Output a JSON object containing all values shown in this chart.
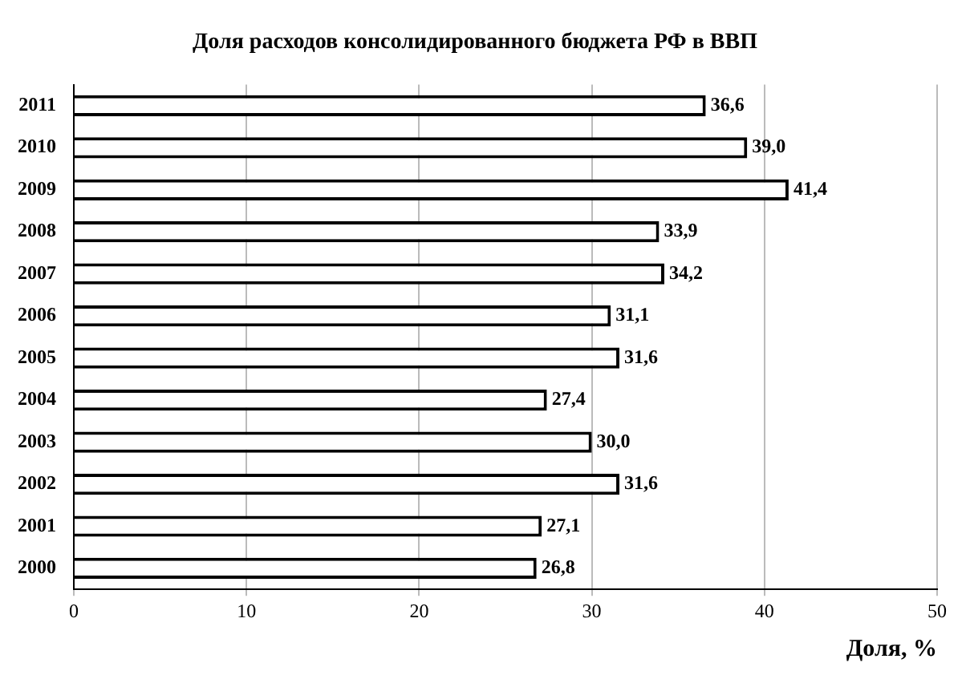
{
  "chart_data": {
    "type": "bar",
    "orientation": "horizontal",
    "title": "Доля расходов консолидированного бюджета РФ в ВВП",
    "xlabel": "Доля, %",
    "categories": [
      "2011",
      "2010",
      "2009",
      "2008",
      "2007",
      "2006",
      "2005",
      "2004",
      "2003",
      "2002",
      "2001",
      "2000"
    ],
    "values": [
      36.6,
      39.0,
      41.4,
      33.9,
      34.2,
      31.1,
      31.6,
      27.4,
      30.0,
      31.6,
      27.1,
      26.8
    ],
    "value_labels": [
      "36,6",
      "39,0",
      "41,4",
      "33,9",
      "34,2",
      "31,1",
      "31,6",
      "27,4",
      "30,0",
      "31,6",
      "27,1",
      "26,8"
    ],
    "color": "#ffffff",
    "xlim": [
      0,
      50
    ],
    "xticks": [
      0,
      10,
      20,
      30,
      40,
      50
    ],
    "grid": "x",
    "legend": false
  }
}
